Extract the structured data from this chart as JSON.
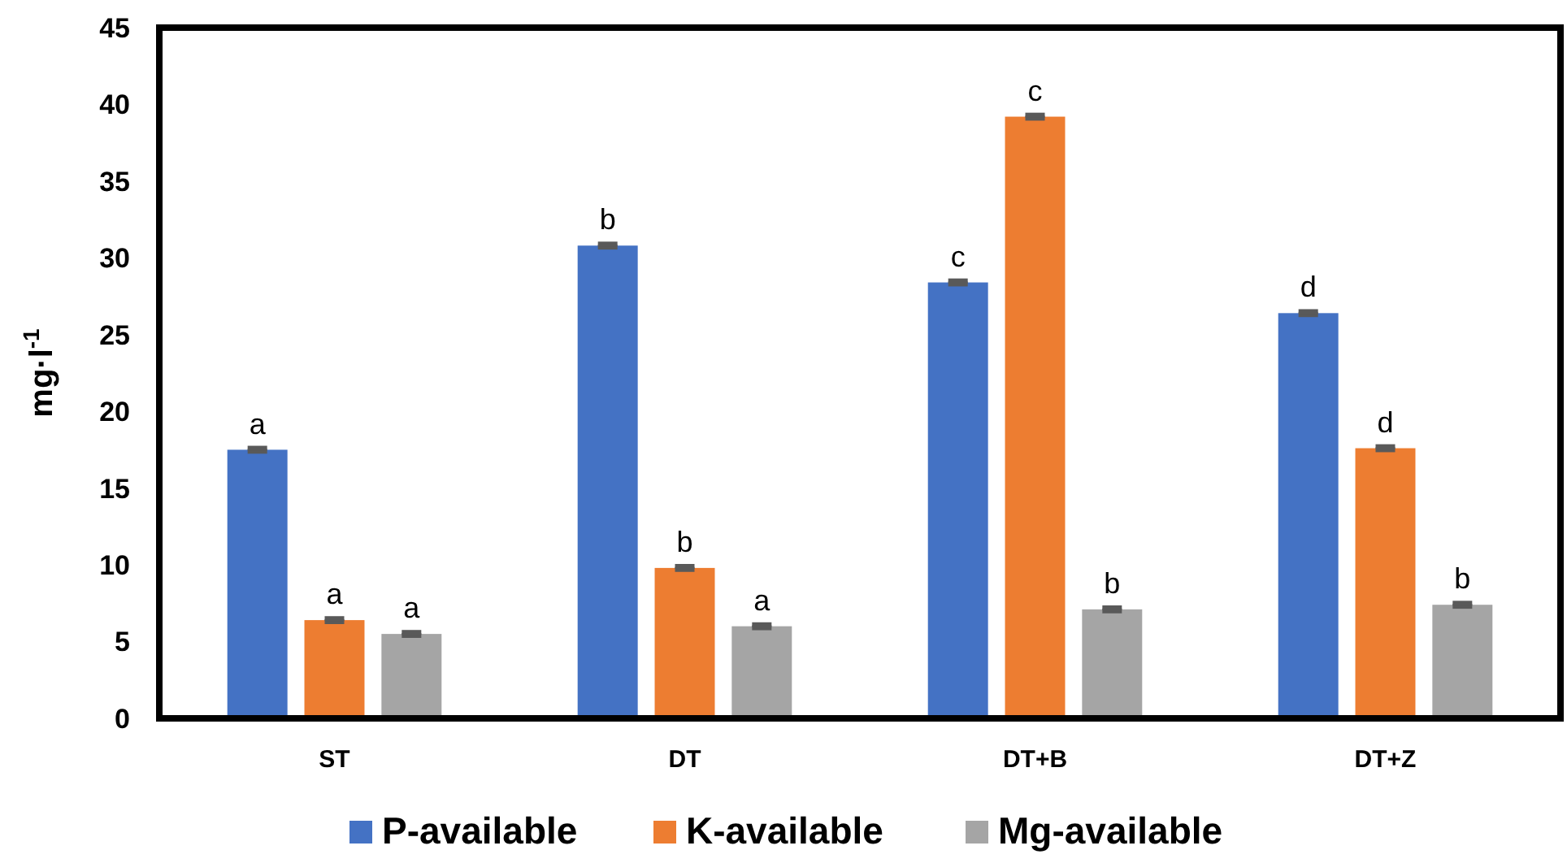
{
  "chart_data": {
    "type": "bar",
    "ylabel": "mg·l$^{-1}$",
    "categories": [
      "ST",
      "DT",
      "DT+B",
      "DT+Z"
    ],
    "series": [
      {
        "name": "P-available",
        "color": "#4472c4",
        "values": [
          17.5,
          30.8,
          28.4,
          26.4
        ],
        "errors": [
          0.1,
          0.1,
          0.1,
          0.1
        ],
        "value_labels": [
          "a",
          "b",
          "c",
          "d"
        ]
      },
      {
        "name": "K-available",
        "color": "#ed7d31",
        "values": [
          6.4,
          9.8,
          39.2,
          17.6
        ],
        "errors": [
          0.1,
          0.1,
          0.1,
          0.1
        ],
        "value_labels": [
          "a",
          "b",
          "c",
          "d"
        ]
      },
      {
        "name": "Mg-available",
        "color": "#a5a5a5",
        "values": [
          5.5,
          6.0,
          7.1,
          7.4
        ],
        "errors": [
          0.1,
          0.1,
          0.1,
          0.1
        ],
        "value_labels": [
          "a",
          "a",
          "b",
          "b"
        ]
      }
    ],
    "ylim": [
      0,
      45
    ],
    "yticks": [
      0,
      5,
      10,
      15,
      20,
      25,
      30,
      35,
      40,
      45
    ],
    "grid": false,
    "legend": "bottom"
  }
}
